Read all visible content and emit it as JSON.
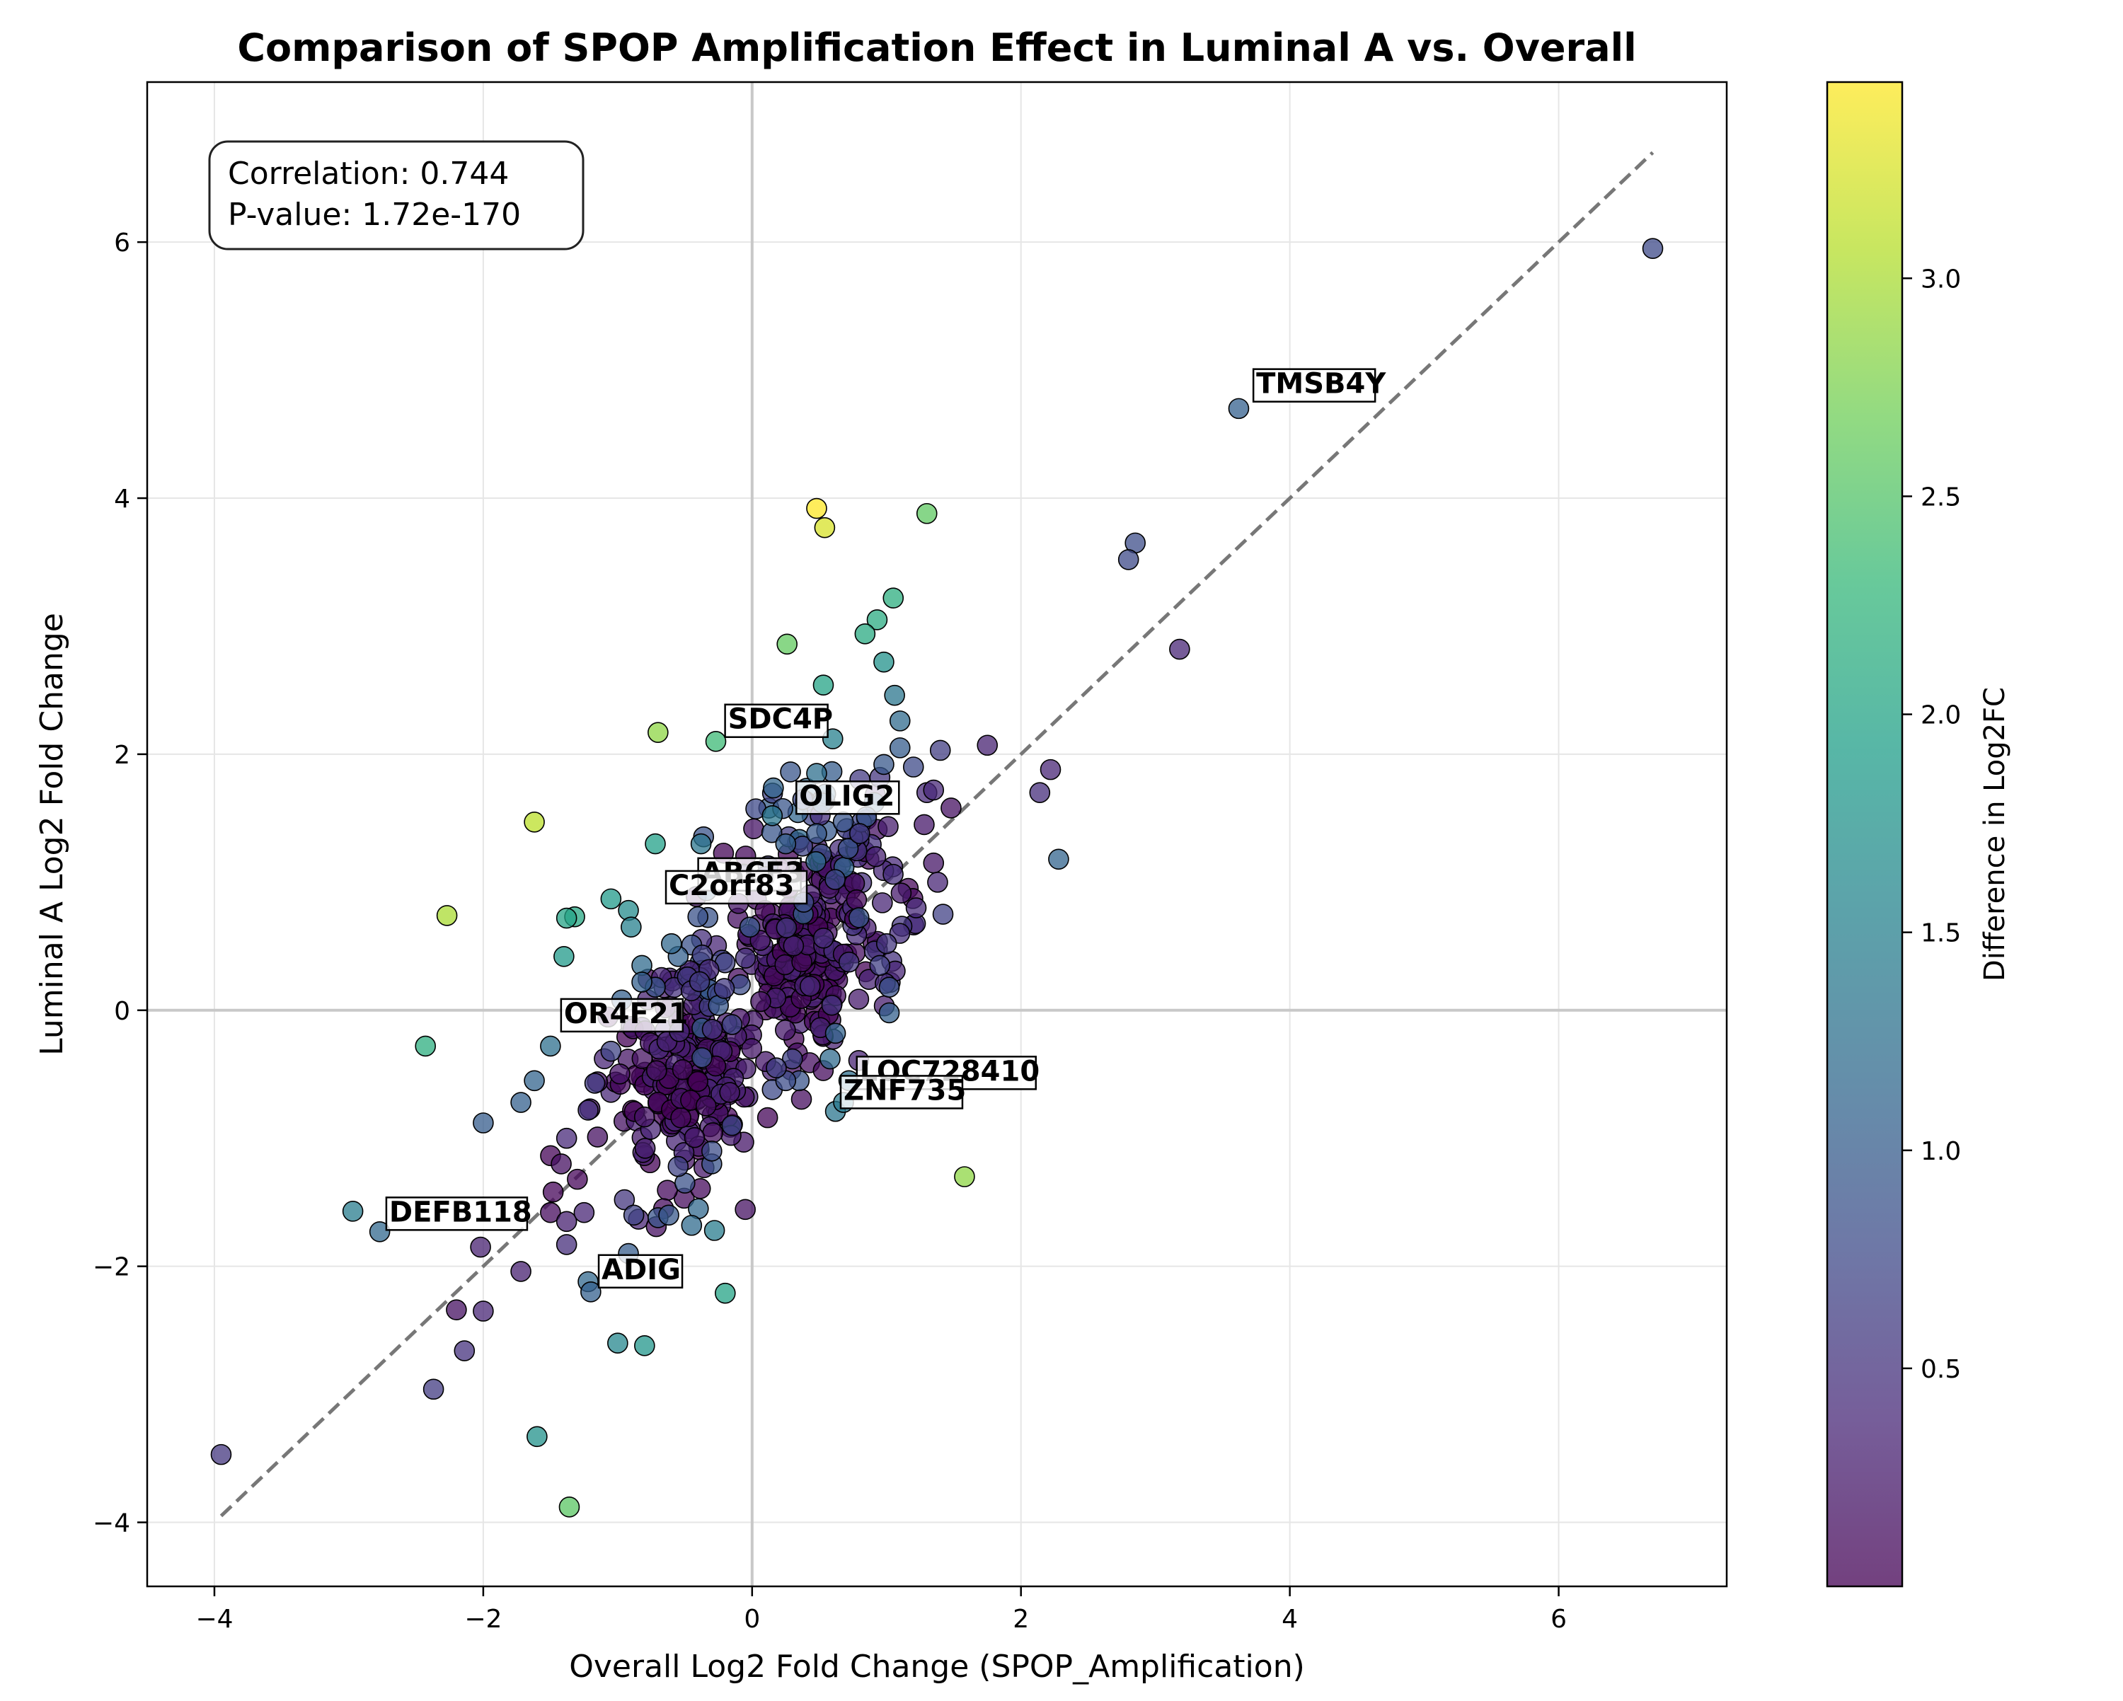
{
  "chart_data": {
    "type": "scatter",
    "title": "Comparison of SPOP Amplification Effect in Luminal A vs. Overall",
    "xlabel": "Overall Log2 Fold Change (SPOP_Amplification)",
    "ylabel": "Luminal A Log2 Fold Change",
    "xlim": [
      -4.5,
      7.25
    ],
    "ylim": [
      -4.5,
      7.25
    ],
    "x_ticks": [
      -4,
      -2,
      0,
      2,
      4,
      6
    ],
    "y_ticks": [
      -4,
      -2,
      0,
      2,
      4,
      6
    ],
    "x_tick_labels": [
      "−4",
      "−2",
      "0",
      "2",
      "4",
      "6"
    ],
    "y_tick_labels": [
      "−4",
      "−2",
      "0",
      "2",
      "4",
      "6"
    ],
    "grid": true,
    "stats_box": [
      "Correlation: 0.744",
      "P-value: 1.72e-170"
    ],
    "reference_line": {
      "style": "dashed",
      "color": "#777777",
      "from": [
        -3.95,
        -3.95
      ],
      "to": [
        6.7,
        6.7
      ]
    },
    "colorbar": {
      "label": "Difference in Log2FC",
      "colormap": "viridis",
      "range": [
        0.0,
        3.45
      ],
      "ticks": [
        0.5,
        1.0,
        1.5,
        2.0,
        2.5,
        3.0
      ],
      "tick_labels": [
        "0.5",
        "1.0",
        "1.5",
        "2.0",
        "2.5",
        "3.0"
      ]
    },
    "labeled_points": [
      {
        "gene": "TMSB4Y",
        "x": 3.62,
        "y": 4.7,
        "label_x": 3.75,
        "label_y": 4.82
      },
      {
        "gene": "SDC4P",
        "x": -0.2,
        "y": 2.25,
        "label_x": -0.18,
        "label_y": 2.2
      },
      {
        "gene": "OLIG2",
        "x": 0.38,
        "y": 1.7,
        "label_x": 0.35,
        "label_y": 1.6
      },
      {
        "gene": "ABCF3",
        "x": -0.35,
        "y": 1.05,
        "label_x": -0.38,
        "label_y": 1.0
      },
      {
        "gene": "C2orf83",
        "x": -0.6,
        "y": 0.95,
        "label_x": -0.62,
        "label_y": 0.9
      },
      {
        "gene": "OR4F21",
        "x": -1.35,
        "y": -0.05,
        "label_x": -1.4,
        "label_y": -0.1
      },
      {
        "gene": "LOC728410",
        "x": 0.8,
        "y": -0.52,
        "label_x": 0.8,
        "label_y": -0.55
      },
      {
        "gene": "ZNF735",
        "x": 0.65,
        "y": -0.72,
        "label_x": 0.68,
        "label_y": -0.7
      },
      {
        "gene": "DEFB118",
        "x": -2.75,
        "y": -1.6,
        "label_x": -2.7,
        "label_y": -1.65
      },
      {
        "gene": "ADIG",
        "x": -1.15,
        "y": -2.05,
        "label_x": -1.12,
        "label_y": -2.1
      }
    ],
    "points": [
      {
        "x": 6.7,
        "y": 5.95,
        "c": 0.75
      },
      {
        "x": 3.62,
        "y": 4.7,
        "c": 1.05
      },
      {
        "x": 2.85,
        "y": 3.65,
        "c": 0.8
      },
      {
        "x": 2.8,
        "y": 3.52,
        "c": 0.75
      },
      {
        "x": 3.18,
        "y": 2.82,
        "c": 0.35
      },
      {
        "x": 2.28,
        "y": 1.18,
        "c": 1.1
      },
      {
        "x": 2.22,
        "y": 1.88,
        "c": 0.35
      },
      {
        "x": 2.14,
        "y": 1.7,
        "c": 0.45
      },
      {
        "x": 1.75,
        "y": 2.07,
        "c": 0.32
      },
      {
        "x": 1.4,
        "y": 2.03,
        "c": 0.62
      },
      {
        "x": 1.48,
        "y": 1.58,
        "c": 0.15
      },
      {
        "x": 1.42,
        "y": 0.75,
        "c": 0.67
      },
      {
        "x": 0.48,
        "y": 3.92,
        "c": 3.45
      },
      {
        "x": 0.54,
        "y": 3.77,
        "c": 3.25
      },
      {
        "x": 1.3,
        "y": 3.88,
        "c": 2.58
      },
      {
        "x": 1.05,
        "y": 3.22,
        "c": 2.15
      },
      {
        "x": 0.93,
        "y": 3.05,
        "c": 2.12
      },
      {
        "x": 0.84,
        "y": 2.94,
        "c": 2.1
      },
      {
        "x": 0.98,
        "y": 2.72,
        "c": 1.75
      },
      {
        "x": 0.26,
        "y": 2.86,
        "c": 2.6
      },
      {
        "x": 0.53,
        "y": 2.54,
        "c": 2.0
      },
      {
        "x": -0.7,
        "y": 2.17,
        "c": 2.85
      },
      {
        "x": -0.27,
        "y": 2.1,
        "c": 2.35
      },
      {
        "x": -1.62,
        "y": 1.47,
        "c": 3.1
      },
      {
        "x": -2.27,
        "y": 0.74,
        "c": 3.0
      },
      {
        "x": -2.43,
        "y": -0.28,
        "c": 2.15
      },
      {
        "x": 1.58,
        "y": -1.3,
        "c": 2.85
      },
      {
        "x": -0.72,
        "y": 1.3,
        "c": 1.95
      },
      {
        "x": -0.38,
        "y": 1.3,
        "c": 1.35
      },
      {
        "x": -1.32,
        "y": 0.73,
        "c": 2.05
      },
      {
        "x": -1.38,
        "y": 0.72,
        "c": 2.0
      },
      {
        "x": -1.05,
        "y": 0.87,
        "c": 1.85
      },
      {
        "x": -0.92,
        "y": 0.78,
        "c": 1.65
      },
      {
        "x": -0.9,
        "y": 0.65,
        "c": 1.5
      },
      {
        "x": -1.4,
        "y": 0.42,
        "c": 1.85
      },
      {
        "x": -1.62,
        "y": -0.55,
        "c": 1.1
      },
      {
        "x": -1.72,
        "y": -0.72,
        "c": 1.05
      },
      {
        "x": -2.0,
        "y": -0.88,
        "c": 1.0
      },
      {
        "x": -1.5,
        "y": -0.28,
        "c": 1.25
      },
      {
        "x": -2.97,
        "y": -1.57,
        "c": 1.45
      },
      {
        "x": -2.77,
        "y": -1.73,
        "c": 1.15
      },
      {
        "x": -2.02,
        "y": -1.85,
        "c": 0.3
      },
      {
        "x": -1.72,
        "y": -2.04,
        "c": 0.3
      },
      {
        "x": -2.2,
        "y": -2.34,
        "c": 0.15
      },
      {
        "x": -2.0,
        "y": -2.35,
        "c": 0.35
      },
      {
        "x": -2.14,
        "y": -2.66,
        "c": 0.5
      },
      {
        "x": -2.37,
        "y": -2.96,
        "c": 0.6
      },
      {
        "x": -3.95,
        "y": -3.47,
        "c": 0.55
      },
      {
        "x": -1.22,
        "y": -2.12,
        "c": 1.15
      },
      {
        "x": -1.2,
        "y": -2.2,
        "c": 1.05
      },
      {
        "x": -1.0,
        "y": -2.6,
        "c": 1.6
      },
      {
        "x": -0.8,
        "y": -2.62,
        "c": 1.8
      },
      {
        "x": -0.2,
        "y": -2.21,
        "c": 2.0
      },
      {
        "x": -1.6,
        "y": -3.33,
        "c": 1.75
      },
      {
        "x": -1.36,
        "y": -3.88,
        "c": 2.55
      },
      {
        "x": 0.62,
        "y": -0.79,
        "c": 1.35
      },
      {
        "x": 0.68,
        "y": -0.72,
        "c": 1.4
      },
      {
        "x": 0.72,
        "y": -0.55,
        "c": 1.25
      },
      {
        "x": 0.58,
        "y": -0.38,
        "c": 1.2
      },
      {
        "x": 0.62,
        "y": -0.18,
        "c": 1.1
      },
      {
        "x": 0.35,
        "y": -0.55,
        "c": 0.9
      },
      {
        "x": 0.3,
        "y": -0.38,
        "c": 0.7
      },
      {
        "x": 1.02,
        "y": -0.02,
        "c": 1.05
      },
      {
        "x": 1.02,
        "y": 0.18,
        "c": 0.85
      },
      {
        "x": 1.0,
        "y": 0.52,
        "c": 0.55
      },
      {
        "x": 0.95,
        "y": 0.35,
        "c": 0.65
      },
      {
        "x": 1.1,
        "y": 2.26,
        "c": 1.2
      },
      {
        "x": 1.1,
        "y": 2.05,
        "c": 1.0
      },
      {
        "x": 1.06,
        "y": 2.46,
        "c": 1.35
      },
      {
        "x": 0.98,
        "y": 1.92,
        "c": 0.95
      },
      {
        "x": 1.2,
        "y": 1.9,
        "c": 0.75
      },
      {
        "x": 0.6,
        "y": 2.12,
        "c": 1.5
      },
      {
        "x": 0.48,
        "y": 1.85,
        "c": 1.25
      },
      {
        "x": 0.52,
        "y": 1.62,
        "c": 1.1
      },
      {
        "x": 0.15,
        "y": 1.52,
        "c": 1.35
      },
      {
        "x": 0.25,
        "y": 1.3,
        "c": 1.05
      },
      {
        "x": 0.48,
        "y": 1.38,
        "c": 0.95
      },
      {
        "x": 0.8,
        "y": 1.38,
        "c": 0.6
      },
      {
        "x": 0.92,
        "y": 1.2,
        "c": 0.3
      },
      {
        "x": 1.35,
        "y": 1.15,
        "c": 0.2
      },
      {
        "x": 1.22,
        "y": 0.8,
        "c": 0.4
      },
      {
        "x": 1.38,
        "y": 1.0,
        "c": 0.35
      },
      {
        "x": 1.3,
        "y": 1.7,
        "c": 0.4
      },
      {
        "x": 1.28,
        "y": 1.45,
        "c": 0.22
      },
      {
        "x": 1.35,
        "y": 1.72,
        "c": 0.38
      },
      {
        "x": -0.55,
        "y": 0.42,
        "c": 1.05
      },
      {
        "x": -0.6,
        "y": 0.52,
        "c": 1.15
      },
      {
        "x": -0.82,
        "y": 0.35,
        "c": 1.2
      },
      {
        "x": -0.72,
        "y": 0.18,
        "c": 0.9
      },
      {
        "x": -0.82,
        "y": 0.22,
        "c": 1.05
      },
      {
        "x": -0.97,
        "y": 0.08,
        "c": 1.05
      },
      {
        "x": -1.05,
        "y": -0.32,
        "c": 0.7
      },
      {
        "x": -1.17,
        "y": -0.57,
        "c": 0.6
      },
      {
        "x": -1.22,
        "y": -0.78,
        "c": 0.5
      },
      {
        "x": -1.15,
        "y": -0.99,
        "c": 0.15
      },
      {
        "x": -1.38,
        "y": -1.0,
        "c": 0.4
      },
      {
        "x": -1.42,
        "y": -1.2,
        "c": 0.15
      },
      {
        "x": -1.48,
        "y": -1.42,
        "c": 0.05
      },
      {
        "x": -1.5,
        "y": -1.58,
        "c": 0.1
      },
      {
        "x": -1.38,
        "y": -1.65,
        "c": 0.3
      },
      {
        "x": -1.38,
        "y": -1.83,
        "c": 0.45
      },
      {
        "x": -1.25,
        "y": -1.58,
        "c": 0.35
      },
      {
        "x": -1.3,
        "y": -1.32,
        "c": 0.05
      },
      {
        "x": -0.95,
        "y": -1.48,
        "c": 0.55
      },
      {
        "x": -0.88,
        "y": -1.6,
        "c": 0.7
      },
      {
        "x": -0.7,
        "y": -1.62,
        "c": 0.9
      },
      {
        "x": -0.62,
        "y": -1.6,
        "c": 0.95
      },
      {
        "x": -0.4,
        "y": -1.55,
        "c": 1.15
      },
      {
        "x": -0.45,
        "y": -1.68,
        "c": 1.2
      },
      {
        "x": -0.28,
        "y": -1.72,
        "c": 1.45
      },
      {
        "x": -0.92,
        "y": -1.9,
        "c": 1.0
      },
      {
        "x": -0.5,
        "y": -1.35,
        "c": 0.85
      },
      {
        "x": -0.55,
        "y": -1.22,
        "c": 0.7
      },
      {
        "x": -0.3,
        "y": -1.2,
        "c": 0.9
      },
      {
        "x": -0.3,
        "y": -1.1,
        "c": 0.8
      },
      {
        "x": -0.15,
        "y": -0.9,
        "c": 0.75
      },
      {
        "x": 0.15,
        "y": -0.62,
        "c": 0.75
      },
      {
        "x": 0.25,
        "y": -0.55,
        "c": 0.8
      },
      {
        "x": 0.18,
        "y": -0.45,
        "c": 0.65
      }
    ],
    "clusters": [
      {
        "cx": 0.35,
        "cy": 0.45,
        "sx": 0.22,
        "sy": 0.38,
        "n": 170,
        "cmin": 0.0,
        "cmax": 0.35
      },
      {
        "cx": -0.55,
        "cy": -0.55,
        "sx": 0.28,
        "sy": 0.38,
        "n": 190,
        "cmin": 0.0,
        "cmax": 0.4
      },
      {
        "cx": 0.75,
        "cy": 0.85,
        "sx": 0.28,
        "sy": 0.35,
        "n": 70,
        "cmin": 0.05,
        "cmax": 0.55
      },
      {
        "cx": -0.4,
        "cy": 0.25,
        "sx": 0.15,
        "sy": 0.35,
        "n": 40,
        "cmin": 0.3,
        "cmax": 1.1
      },
      {
        "cx": 0.45,
        "cy": 1.35,
        "sx": 0.3,
        "sy": 0.3,
        "n": 40,
        "cmin": 0.4,
        "cmax": 1.2
      }
    ]
  }
}
